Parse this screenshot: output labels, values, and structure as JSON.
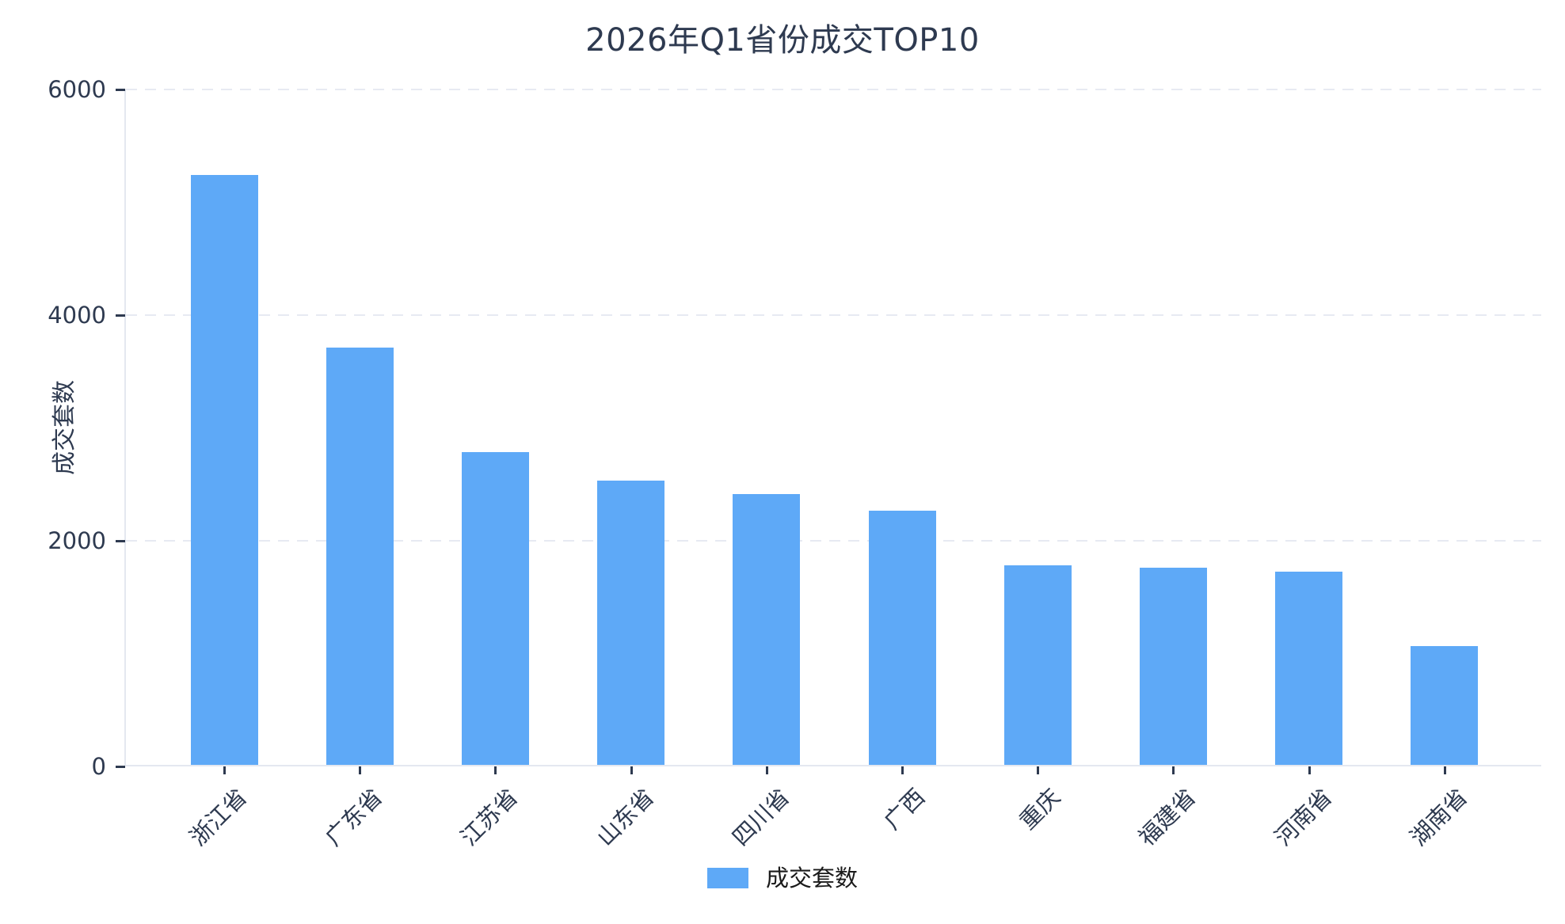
{
  "title": "2026年Q1省份成交TOP10",
  "y_axis": {
    "label": "成交套数",
    "ticks": [
      "0",
      "2000",
      "4000",
      "6000"
    ]
  },
  "legend": {
    "label": "成交套数"
  },
  "colors": {
    "bar": "#5ea9f7",
    "dark_text": "#2e3a50",
    "legend_text": "#1a1a1a",
    "axis_line": "#e4e8f0",
    "gridline": "#e7eaf2",
    "background": "#ffffff"
  },
  "chart_data": {
    "type": "bar",
    "title": "2026年Q1省份成交TOP10",
    "categories": [
      "浙江省",
      "广东省",
      "江苏省",
      "山东省",
      "四川省",
      "广西",
      "重庆",
      "福建省",
      "河南省",
      "湖南省"
    ],
    "values": [
      5230,
      3700,
      2770,
      2520,
      2400,
      2250,
      1770,
      1750,
      1710,
      1050
    ],
    "series": [
      {
        "name": "成交套数",
        "values": [
          5230,
          3700,
          2770,
          2520,
          2400,
          2250,
          1770,
          1750,
          1710,
          1050
        ]
      }
    ],
    "xlabel": "",
    "ylabel": "成交套数",
    "ylim": [
      0,
      6000
    ],
    "yticks": [
      0,
      2000,
      4000,
      6000
    ],
    "grid": "horizontal-dashed",
    "legend_position": "bottom-center",
    "bar_color": "#5ea9f7",
    "x_tick_label_rotation_deg": 45
  }
}
